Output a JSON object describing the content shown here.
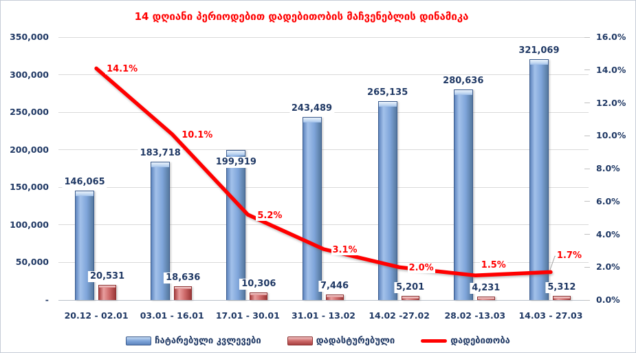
{
  "chart_data": {
    "type": "combo-bar-line",
    "title": "14 დღიანი პერიოდებით დადებითობის მაჩვენებლის დინამიკა",
    "categories": [
      "20.12 - 02.01",
      "03.01 - 16.01",
      "17.01 - 30.01",
      "31.01 - 13.02",
      "14.02 -27.02",
      "28.02 -13.03",
      "14.03 - 27.03"
    ],
    "series": [
      {
        "name": "ჩატარებული კვლევები",
        "type": "bar",
        "axis": "left",
        "values": [
          146065,
          183718,
          199919,
          243489,
          265135,
          280636,
          321069
        ],
        "labels": [
          "146,065",
          "183,718",
          "199,919",
          "243,489",
          "265,135",
          "280,636",
          "321,069"
        ],
        "label_placement": [
          "above",
          "above",
          "inside-top",
          "above",
          "above",
          "above",
          "above"
        ]
      },
      {
        "name": "დადასტურებული",
        "type": "bar",
        "axis": "left",
        "values": [
          20531,
          18636,
          10306,
          7446,
          5201,
          4231,
          5312
        ],
        "labels": [
          "20,531",
          "18,636",
          "10,306",
          "7,446",
          "5,201",
          "4,231",
          "5,312"
        ]
      },
      {
        "name": "დადებითობა",
        "type": "line",
        "axis": "right",
        "values": [
          14.1,
          10.1,
          5.2,
          3.1,
          2.0,
          1.5,
          1.7
        ],
        "labels": [
          "14.1%",
          "10.1%",
          "5.2%",
          "3.1%",
          "2.0%",
          "1.5%",
          "1.7%"
        ],
        "label_offsets": [
          [
            13,
            -6
          ],
          [
            12,
            -6
          ],
          [
            12,
            -6
          ],
          [
            11,
            -6
          ],
          [
            12,
            -6
          ],
          [
            7,
            -22
          ],
          [
            7,
            -31
          ]
        ],
        "leader_on_last": true
      }
    ],
    "left_axis": {
      "min": 0,
      "max": 350000,
      "step": 50000,
      "tick_labels": [
        "-",
        "50,000",
        "100,000",
        "150,000",
        "200,000",
        "250,000",
        "300,000",
        "350,000"
      ]
    },
    "right_axis": {
      "min": 0,
      "max": 16,
      "step": 2,
      "tick_labels": [
        "0.0%",
        "2.0%",
        "4.0%",
        "6.0%",
        "8.0%",
        "10.0%",
        "12.0%",
        "14.0%",
        "16.0%"
      ]
    },
    "grid": true,
    "legend_position": "bottom"
  },
  "legend": {
    "items": [
      {
        "label": "ჩატარებული კვლევები",
        "swatch": "bar-blue"
      },
      {
        "label": "დადასტურებული",
        "swatch": "bar-red"
      },
      {
        "label": "დადებითობა",
        "swatch": "line-red"
      }
    ]
  },
  "colors": {
    "title": "#FF0000",
    "axis_text": "#1F3864",
    "percent_label": "#FF0000",
    "line": "#FF0000",
    "gridline": "#D9D9D9",
    "bar_blue_main": "#7FA5DA",
    "bar_blue_border": "#3A5A8C",
    "bar_red_main": "#CE6A6A",
    "bar_red_border": "#8C3030",
    "label_bg": "#FFFFFF",
    "leader_line": "#A6A6A6"
  }
}
